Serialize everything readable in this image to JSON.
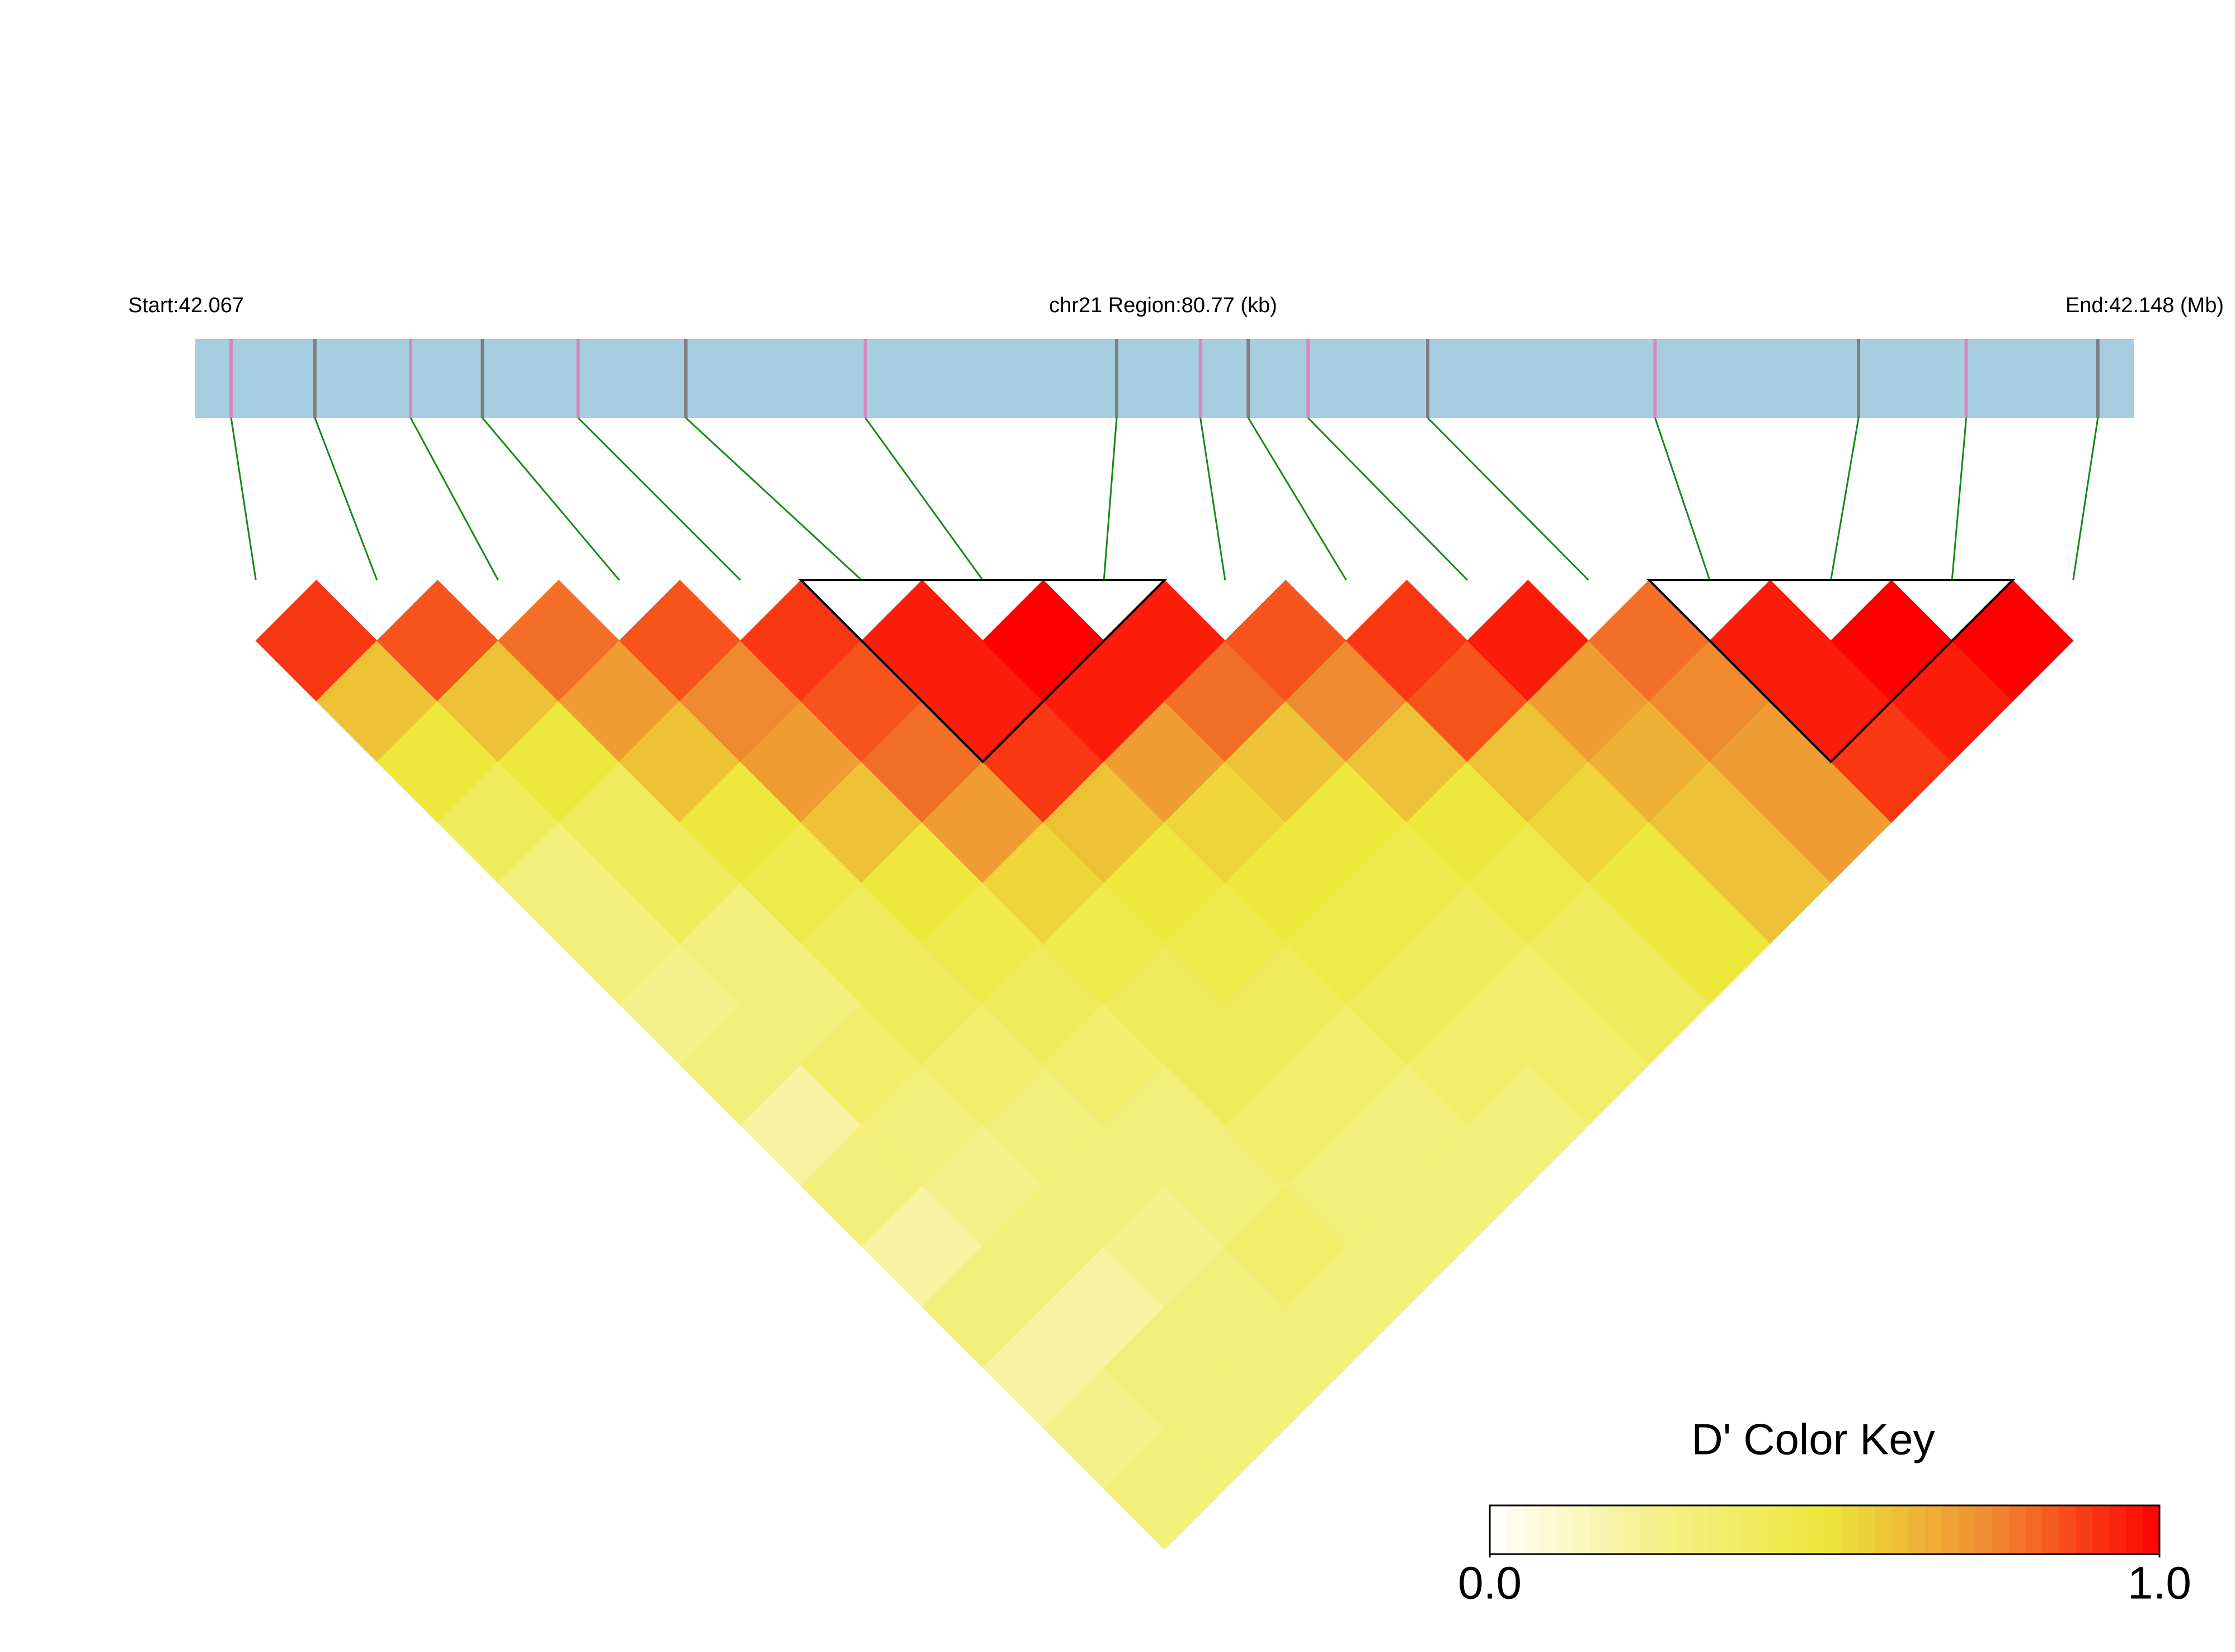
{
  "chart_data": {
    "type": "heatmap",
    "start_label": "Start:42.067",
    "title": "chr21 Region:80.77 (kb)",
    "end_label": "End:42.148 (Mb)",
    "xlim": [
      42.067,
      42.148
    ],
    "snp_positions": [
      42.0685,
      42.072,
      42.076,
      42.079,
      42.083,
      42.0875,
      42.095,
      42.1055,
      42.109,
      42.111,
      42.1135,
      42.1185,
      42.128,
      42.1365,
      42.141,
      42.1465
    ],
    "track_color": "#a6cde0",
    "snp_colors": [
      "#d986c0",
      "#7f7f7f"
    ],
    "link_color": "#138a13",
    "dprime": [
      [
        0.9,
        0.6,
        0.5,
        0.4,
        0.3,
        0.3,
        0.25,
        0.3,
        0.2,
        0.3,
        0.2,
        0.3,
        0.2,
        0.25,
        0.3
      ],
      [
        0.85,
        0.6,
        0.5,
        0.4,
        0.4,
        0.3,
        0.3,
        0.35,
        0.3,
        0.25,
        0.3,
        0.2,
        0.3,
        0.3
      ],
      [
        0.8,
        0.7,
        0.6,
        0.5,
        0.45,
        0.4,
        0.4,
        0.35,
        0.3,
        0.3,
        0.25,
        0.3,
        0.3
      ],
      [
        0.85,
        0.75,
        0.7,
        0.6,
        0.5,
        0.45,
        0.4,
        0.35,
        0.3,
        0.3,
        0.35,
        0.3
      ],
      [
        0.9,
        0.85,
        0.8,
        0.7,
        0.55,
        0.45,
        0.4,
        0.4,
        0.35,
        0.3,
        0.3
      ],
      [
        0.95,
        0.95,
        0.9,
        0.6,
        0.5,
        0.45,
        0.4,
        0.35,
        0.3,
        0.3
      ],
      [
        1,
        0.95,
        0.7,
        0.55,
        0.5,
        0.45,
        0.4,
        0.35,
        0.3
      ],
      [
        0.95,
        0.8,
        0.6,
        0.5,
        0.45,
        0.4,
        0.35,
        0.35
      ],
      [
        0.85,
        0.75,
        0.6,
        0.5,
        0.45,
        0.4,
        0.4
      ],
      [
        0.9,
        0.85,
        0.6,
        0.55,
        0.5,
        0.5
      ],
      [
        0.95,
        0.7,
        0.65,
        0.6,
        0.6
      ],
      [
        0.8,
        0.75,
        0.7,
        0.7
      ],
      [
        0.95,
        0.95,
        0.9
      ],
      [
        1,
        0.95
      ],
      [
        1
      ]
    ],
    "blocks": [
      [
        5,
        8
      ],
      [
        12,
        15
      ]
    ],
    "colorscale": [
      "#ffffff",
      "#f6f08a",
      "#ece83c",
      "#f08a30",
      "#ff0000"
    ],
    "legend_title": "D' Color Key",
    "key_lim": [
      0,
      1
    ],
    "key_ticks": [
      {
        "value": 0,
        "label": "0.0"
      },
      {
        "value": 1,
        "label": "1.0"
      }
    ]
  }
}
